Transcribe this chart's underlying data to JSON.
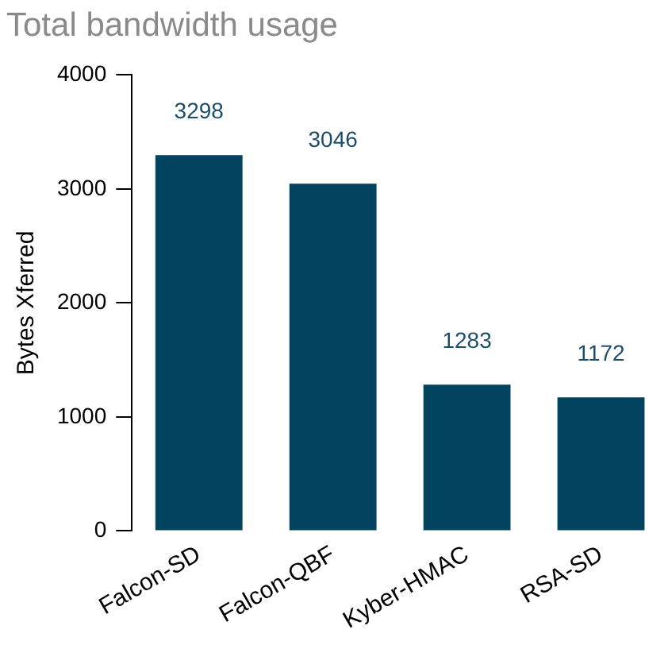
{
  "chart_data": {
    "type": "bar",
    "title": "Total bandwidth usage",
    "ylabel": "Bytes Xferred",
    "categories": [
      "Falcon-SD",
      "Falcon-QBF",
      "Kyber-HMAC",
      "RSA-SD"
    ],
    "values": [
      3298,
      3046,
      1283,
      1172
    ],
    "color": "#02435f",
    "ylim": [
      0,
      4000
    ],
    "yticks": [
      0,
      1000,
      2000,
      3000,
      4000
    ],
    "grid": false,
    "legend": false,
    "data_labels": true
  }
}
